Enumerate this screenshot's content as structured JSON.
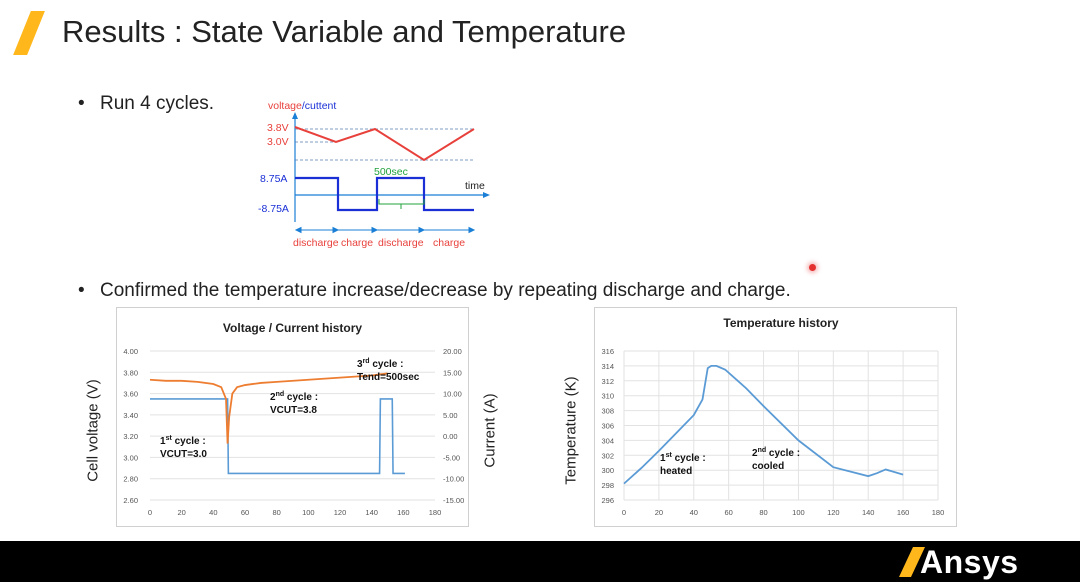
{
  "header": {
    "title": "Results : State Variable and Temperature"
  },
  "bullets": {
    "b1": "Run 4 cycles.",
    "b2": "Confirmed the temperature increase/decrease by repeating discharge and charge."
  },
  "schematic": {
    "axis_label_voltage": "voltage",
    "axis_label_sep": "/",
    "axis_label_current": "cuttent",
    "v_high": "3.8V",
    "v_low": "3.0V",
    "i_high": "8.75A",
    "i_low": "-8.75A",
    "time_label": "time",
    "duration_label": "500sec",
    "phases": [
      "discharge",
      "charge",
      "discharge",
      "charge"
    ]
  },
  "colors": {
    "accent": "#ffb71b",
    "voltage": "#e8413c",
    "current": "#1a2fd6",
    "chart_line": "#5b9bd5",
    "chart_orange": "#ed7d31",
    "green": "#21a33c"
  },
  "chart_data": [
    {
      "type": "line",
      "title": "Voltage / Current history",
      "xlabel": "",
      "ylabel": "Cell voltage (V)",
      "y2label": "Current (A)",
      "xlim": [
        0,
        180
      ],
      "ylim": [
        2.6,
        4.0
      ],
      "y2lim": [
        -15,
        20
      ],
      "x_ticks": [
        "0",
        "20",
        "40",
        "60",
        "80",
        "100",
        "120",
        "140",
        "160",
        "180"
      ],
      "y_ticks": [
        "2.60",
        "2.80",
        "3.00",
        "3.20",
        "3.40",
        "3.60",
        "3.80",
        "4.00"
      ],
      "y2_ticks": [
        "-15.00",
        "-10.00",
        "-5.00",
        "0.00",
        "5.00",
        "10.00",
        "15.00",
        "20.00"
      ],
      "series": [
        {
          "name": "Cell voltage",
          "axis": "left",
          "x": [
            0,
            10,
            20,
            30,
            40,
            45,
            48,
            49,
            50,
            52,
            55,
            60,
            70,
            80,
            100,
            120,
            140,
            150
          ],
          "y": [
            3.73,
            3.72,
            3.72,
            3.71,
            3.69,
            3.66,
            3.55,
            3.13,
            3.38,
            3.6,
            3.66,
            3.68,
            3.7,
            3.71,
            3.73,
            3.75,
            3.77,
            3.79
          ]
        },
        {
          "name": "Current",
          "axis": "right",
          "x": [
            0,
            49,
            49.5,
            145,
            145.5,
            153,
            153.5,
            161
          ],
          "y": [
            8.75,
            8.75,
            -8.75,
            -8.75,
            8.75,
            8.75,
            -8.75,
            -8.75
          ]
        }
      ],
      "annotations": [
        {
          "main": "1",
          "sup": "st",
          "rest": " cycle :",
          "line2": "VCUT=3.0"
        },
        {
          "main": "2",
          "sup": "nd",
          "rest": " cycle :",
          "line2": "VCUT=3.8"
        },
        {
          "main": "3",
          "sup": "rd",
          "rest": " cycle :",
          "line2": "Tend=500sec"
        }
      ]
    },
    {
      "type": "line",
      "title": "Temperature history",
      "xlabel": "",
      "ylabel": "Temperature (K)",
      "xlim": [
        0,
        180
      ],
      "ylim": [
        296,
        316
      ],
      "x_ticks": [
        "0",
        "20",
        "40",
        "60",
        "80",
        "100",
        "120",
        "140",
        "160",
        "180"
      ],
      "y_ticks": [
        "296",
        "298",
        "300",
        "302",
        "304",
        "306",
        "308",
        "310",
        "312",
        "314",
        "316"
      ],
      "series": [
        {
          "name": "Temperature",
          "x": [
            0,
            10,
            20,
            30,
            40,
            45,
            48,
            50,
            53,
            58,
            70,
            80,
            100,
            120,
            140,
            145,
            150,
            160
          ],
          "y": [
            298.2,
            300.3,
            302.6,
            305,
            307.4,
            309.5,
            313.7,
            314,
            314,
            313.5,
            311,
            308.6,
            304,
            300.4,
            299.2,
            299.6,
            300.1,
            299.4
          ]
        }
      ],
      "annotations": [
        {
          "main": "1",
          "sup": "st",
          "rest": " cycle :",
          "line2": "heated"
        },
        {
          "main": "2",
          "sup": "nd",
          "rest": " cycle :",
          "line2": "cooled"
        }
      ]
    }
  ],
  "footer": {
    "logo": "Ansys"
  }
}
